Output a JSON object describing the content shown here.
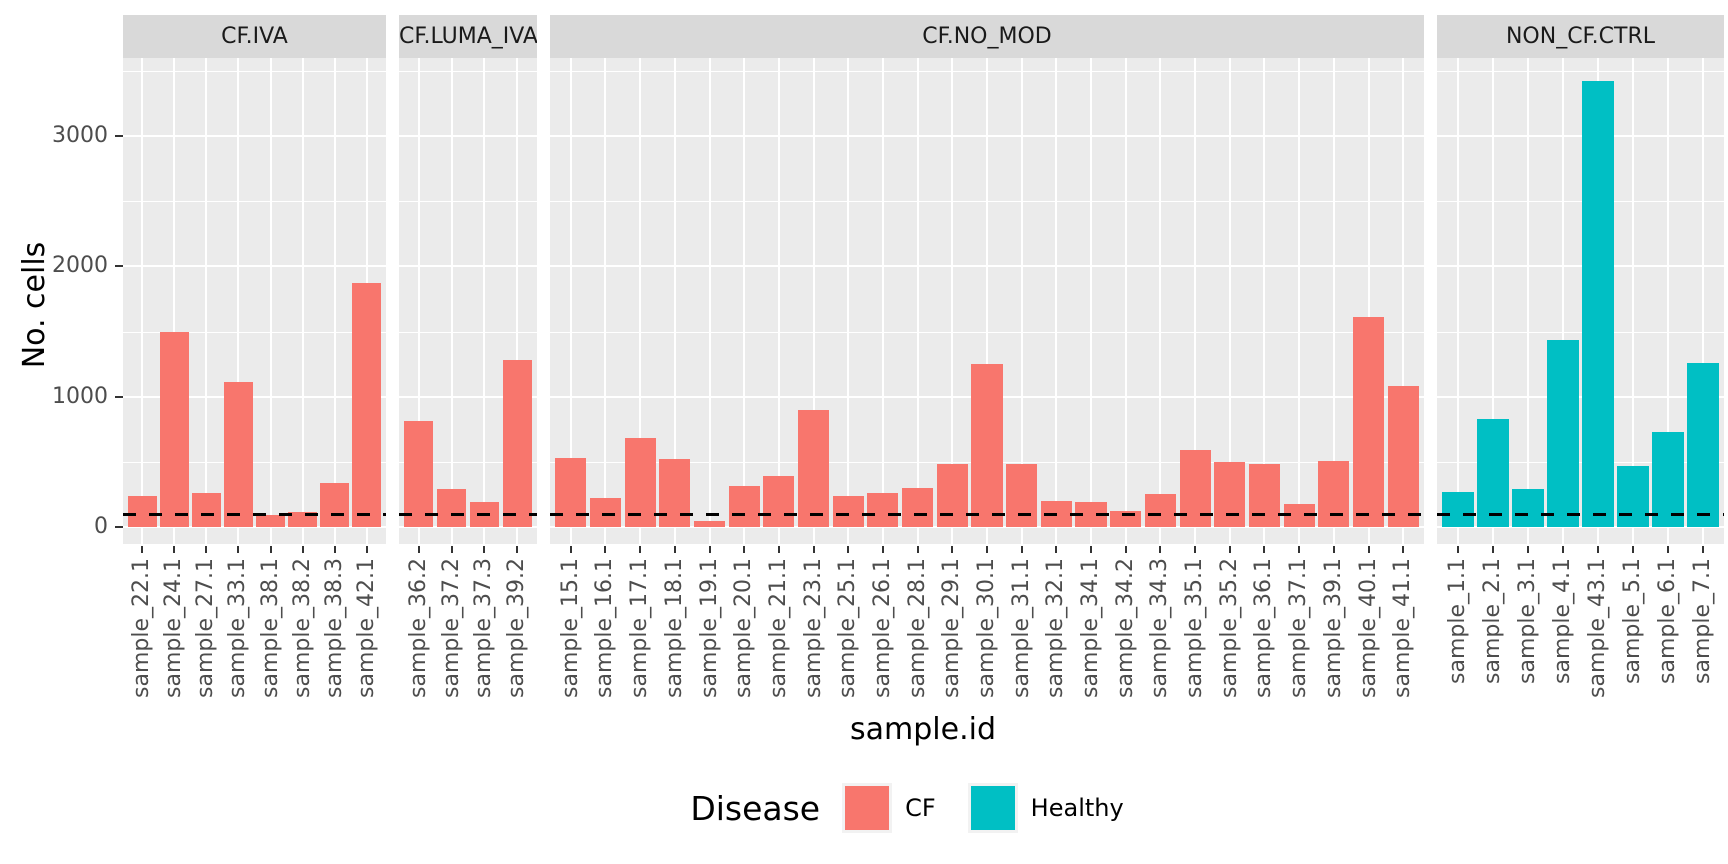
{
  "chart_data": {
    "type": "bar",
    "title": "",
    "xlabel": "sample.id",
    "ylabel": "No. cells",
    "ylim": [
      0,
      3583
    ],
    "yticks": [
      0,
      1000,
      2000,
      3000
    ],
    "yticks_minor": [
      500,
      1500,
      2500,
      3500
    ],
    "grid": "white gridlines on gray panel",
    "hline": {
      "value": 100,
      "style": "dashed",
      "color": "#000000"
    },
    "legend": {
      "title": "Disease",
      "position": "bottom",
      "entries": [
        {
          "label": "CF",
          "color": "#F8766D"
        },
        {
          "label": "Healthy",
          "color": "#00BFC4"
        }
      ]
    },
    "facets": [
      {
        "label": "CF.IVA",
        "group": "CF",
        "categories": [
          "sample_22.1",
          "sample_24.1",
          "sample_27.1",
          "sample_33.1",
          "sample_38.1",
          "sample_38.2",
          "sample_38.3",
          "sample_42.1"
        ],
        "values": [
          240,
          1500,
          265,
          1110,
          90,
          115,
          340,
          1870
        ]
      },
      {
        "label": "CF.LUMA_IVA",
        "group": "CF",
        "categories": [
          "sample_36.2",
          "sample_37.2",
          "sample_37.3",
          "sample_39.2"
        ],
        "values": [
          810,
          290,
          195,
          1280
        ]
      },
      {
        "label": "CF.NO_MOD",
        "group": "CF",
        "categories": [
          "sample_15.1",
          "sample_16.1",
          "sample_17.1",
          "sample_18.1",
          "sample_19.1",
          "sample_20.1",
          "sample_21.1",
          "sample_23.1",
          "sample_25.1",
          "sample_26.1",
          "sample_28.1",
          "sample_29.1",
          "sample_30.1",
          "sample_31.1",
          "sample_32.1",
          "sample_34.1",
          "sample_34.2",
          "sample_34.3",
          "sample_35.1",
          "sample_35.2",
          "sample_36.1",
          "sample_37.1",
          "sample_39.1",
          "sample_40.1",
          "sample_41.1"
        ],
        "values": [
          530,
          225,
          680,
          520,
          45,
          315,
          390,
          900,
          240,
          265,
          300,
          485,
          1250,
          485,
          200,
          190,
          125,
          250,
          595,
          500,
          480,
          178,
          510,
          1610,
          1080
        ]
      },
      {
        "label": "NON_CF.CTRL",
        "group": "Healthy",
        "categories": [
          "sample_1.1",
          "sample_2.1",
          "sample_3.1",
          "sample_4.1",
          "sample_43.1",
          "sample_5.1",
          "sample_6.1",
          "sample_7.1"
        ],
        "values": [
          270,
          830,
          290,
          1435,
          3420,
          465,
          730,
          1260
        ]
      }
    ]
  },
  "colors": {
    "panel_bg": "#EBEBEB",
    "strip_bg": "#D9D9D9",
    "gridline": "#FFFFFF",
    "axis_text": "#4D4D4D",
    "strip_text": "#1A1A1A",
    "tick_mark": "#333333"
  }
}
